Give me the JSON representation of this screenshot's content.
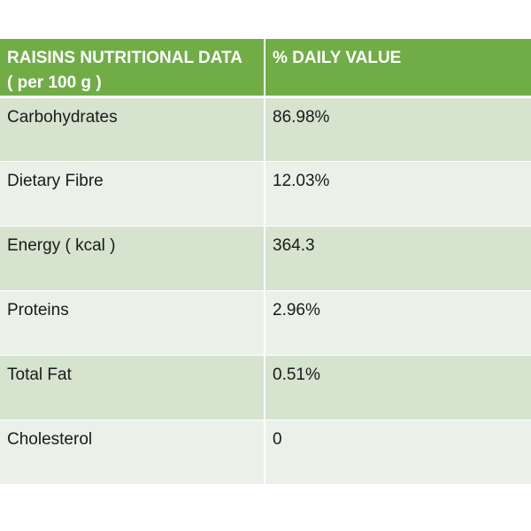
{
  "table": {
    "header": {
      "col1_line1": "RAISINS NUTRITIONAL DATA",
      "col1_line2": "( per 100 g )",
      "col2": "% DAILY VALUE"
    },
    "rows": [
      {
        "nutrient": "Carbohydrates",
        "value": "86.98%"
      },
      {
        "nutrient": "Dietary Fibre",
        "value": "12.03%"
      },
      {
        "nutrient": "Energy ( kcal )",
        "value": "364.3"
      },
      {
        "nutrient": "Proteins",
        "value": "2.96%"
      },
      {
        "nutrient": "Total Fat",
        "value": "0.51%"
      },
      {
        "nutrient": "Cholesterol",
        "value": "0"
      }
    ]
  },
  "colors": {
    "header_bg": "#70ad47",
    "row_dark_bg": "#d5e3cf",
    "row_light_bg": "#ebf1e9"
  }
}
